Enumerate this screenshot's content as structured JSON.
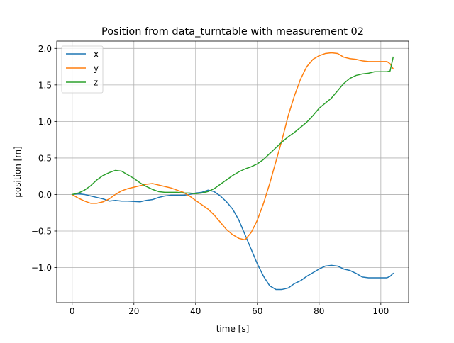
{
  "chart_data": {
    "type": "line",
    "title": "Position from data_turntable with measurement 02",
    "xlabel": "time [s]",
    "ylabel": "position [m]",
    "xlim": [
      -5,
      109
    ],
    "ylim": [
      -1.48,
      2.1
    ],
    "xticks": [
      0,
      20,
      40,
      60,
      80,
      100
    ],
    "yticks": [
      -1.0,
      -0.5,
      0.0,
      0.5,
      1.0,
      1.5,
      2.0
    ],
    "xtick_labels": [
      "0",
      "20",
      "40",
      "60",
      "80",
      "100"
    ],
    "ytick_labels": [
      "−1.0",
      "−0.5",
      "0.0",
      "0.5",
      "1.0",
      "1.5",
      "2.0"
    ],
    "grid": true,
    "legend_position": "top-left",
    "series": [
      {
        "name": "x",
        "color": "#1f77b4",
        "x": [
          0,
          2,
          4,
          6,
          8,
          10,
          12,
          14,
          16,
          18,
          20,
          22,
          24,
          26,
          28,
          30,
          32,
          34,
          36,
          38,
          40,
          42,
          44,
          46,
          48,
          50,
          52,
          54,
          56,
          58,
          60,
          62,
          64,
          66,
          68,
          70,
          72,
          74,
          76,
          78,
          80,
          82,
          84,
          86,
          88,
          90,
          92,
          94,
          96,
          98,
          100,
          102,
          103,
          104
        ],
        "values": [
          0.0,
          0.01,
          0.0,
          -0.02,
          -0.04,
          -0.06,
          -0.09,
          -0.08,
          -0.09,
          -0.09,
          -0.095,
          -0.1,
          -0.08,
          -0.07,
          -0.04,
          -0.02,
          -0.01,
          -0.01,
          -0.01,
          0.0,
          0.02,
          0.03,
          0.06,
          0.04,
          -0.02,
          -0.1,
          -0.2,
          -0.35,
          -0.55,
          -0.75,
          -0.95,
          -1.12,
          -1.25,
          -1.3,
          -1.3,
          -1.28,
          -1.22,
          -1.18,
          -1.12,
          -1.07,
          -1.02,
          -0.98,
          -0.97,
          -0.98,
          -1.02,
          -1.04,
          -1.08,
          -1.13,
          -1.14,
          -1.14,
          -1.14,
          -1.14,
          -1.12,
          -1.08
        ]
      },
      {
        "name": "y",
        "color": "#ff7f0e",
        "x": [
          0,
          2,
          4,
          6,
          8,
          10,
          12,
          14,
          16,
          18,
          20,
          22,
          24,
          26,
          28,
          30,
          32,
          34,
          36,
          38,
          40,
          42,
          44,
          46,
          48,
          50,
          52,
          54,
          56,
          58,
          60,
          62,
          64,
          66,
          68,
          70,
          72,
          74,
          76,
          78,
          80,
          82,
          84,
          86,
          88,
          90,
          92,
          94,
          96,
          98,
          100,
          102,
          103,
          104
        ],
        "values": [
          0.0,
          -0.05,
          -0.09,
          -0.12,
          -0.12,
          -0.1,
          -0.06,
          0.0,
          0.05,
          0.08,
          0.1,
          0.12,
          0.14,
          0.15,
          0.13,
          0.11,
          0.09,
          0.06,
          0.03,
          -0.02,
          -0.08,
          -0.14,
          -0.2,
          -0.28,
          -0.38,
          -0.48,
          -0.55,
          -0.6,
          -0.62,
          -0.52,
          -0.35,
          -0.12,
          0.15,
          0.45,
          0.75,
          1.08,
          1.35,
          1.58,
          1.75,
          1.85,
          1.9,
          1.93,
          1.94,
          1.93,
          1.88,
          1.86,
          1.85,
          1.83,
          1.82,
          1.82,
          1.82,
          1.82,
          1.79,
          1.72
        ]
      },
      {
        "name": "z",
        "color": "#2ca02c",
        "x": [
          0,
          2,
          4,
          6,
          8,
          10,
          12,
          14,
          16,
          18,
          20,
          22,
          24,
          26,
          28,
          30,
          32,
          34,
          36,
          38,
          40,
          42,
          44,
          46,
          48,
          50,
          52,
          54,
          56,
          58,
          60,
          62,
          64,
          66,
          68,
          70,
          72,
          74,
          76,
          78,
          80,
          82,
          84,
          86,
          88,
          90,
          92,
          94,
          96,
          98,
          100,
          102,
          103,
          104
        ],
        "values": [
          0.0,
          0.02,
          0.06,
          0.12,
          0.2,
          0.26,
          0.3,
          0.33,
          0.32,
          0.27,
          0.22,
          0.16,
          0.11,
          0.07,
          0.04,
          0.03,
          0.03,
          0.03,
          0.02,
          0.02,
          0.01,
          0.02,
          0.04,
          0.08,
          0.14,
          0.2,
          0.26,
          0.31,
          0.35,
          0.38,
          0.42,
          0.48,
          0.56,
          0.64,
          0.72,
          0.79,
          0.85,
          0.92,
          0.99,
          1.08,
          1.18,
          1.25,
          1.32,
          1.42,
          1.52,
          1.59,
          1.63,
          1.65,
          1.66,
          1.68,
          1.68,
          1.68,
          1.69,
          1.88
        ]
      }
    ]
  }
}
